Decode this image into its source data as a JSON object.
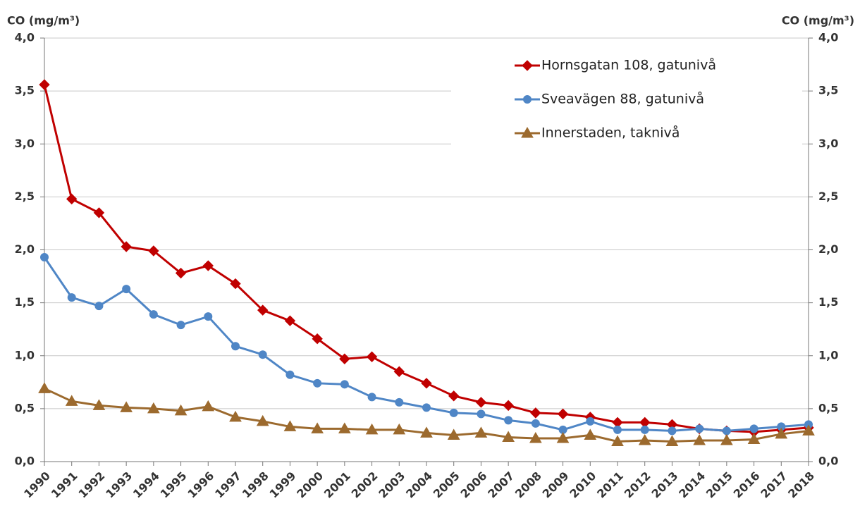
{
  "chart_data": {
    "type": "line",
    "y_label": "CO (mg/m³)",
    "y2_label": "CO (mg/m³)",
    "categories": [
      "1990",
      "1991",
      "1992",
      "1993",
      "1994",
      "1995",
      "1996",
      "1997",
      "1998",
      "1999",
      "2000",
      "2001",
      "2002",
      "2003",
      "2004",
      "2005",
      "2006",
      "2007",
      "2008",
      "2009",
      "2010",
      "2011",
      "2012",
      "2013",
      "2014",
      "2015",
      "2016",
      "2017",
      "2018"
    ],
    "series": [
      {
        "name": "Hornsgatan 108, gatunivå",
        "color": "#c00000",
        "marker": "diamond",
        "values": [
          3.56,
          2.48,
          2.35,
          2.03,
          1.99,
          1.78,
          1.85,
          1.68,
          1.43,
          1.33,
          1.16,
          0.97,
          0.99,
          0.85,
          0.74,
          0.62,
          0.56,
          0.53,
          0.46,
          0.45,
          0.42,
          0.37,
          0.37,
          0.35,
          0.31,
          0.29,
          0.28,
          0.3,
          0.32
        ]
      },
      {
        "name": "Sveavägen 88, gatunivå",
        "color": "#4f86c6",
        "marker": "circle",
        "values": [
          1.93,
          1.55,
          1.47,
          1.63,
          1.39,
          1.29,
          1.37,
          1.09,
          1.01,
          0.82,
          0.74,
          0.73,
          0.61,
          0.56,
          0.51,
          0.46,
          0.45,
          0.39,
          0.36,
          0.3,
          0.38,
          0.3,
          0.3,
          0.29,
          0.31,
          0.29,
          0.31,
          0.33,
          0.35
        ]
      },
      {
        "name": "Innerstaden, taknivå",
        "color": "#9c6a2e",
        "marker": "triangle",
        "values": [
          0.69,
          0.57,
          0.53,
          0.51,
          0.5,
          0.48,
          0.52,
          0.42,
          0.38,
          0.33,
          0.31,
          0.31,
          0.3,
          0.3,
          0.27,
          0.25,
          0.27,
          0.23,
          0.22,
          0.22,
          0.25,
          0.19,
          0.2,
          0.19,
          0.2,
          0.2,
          0.21,
          0.26,
          0.29
        ]
      }
    ],
    "ylim": [
      0,
      4
    ],
    "yticks": [
      {
        "value": 0,
        "label": "0,0"
      },
      {
        "value": 0.5,
        "label": "0,5"
      },
      {
        "value": 1,
        "label": "1,0"
      },
      {
        "value": 1.5,
        "label": "1,5"
      },
      {
        "value": 2,
        "label": "2,0"
      },
      {
        "value": 2.5,
        "label": "2,5"
      },
      {
        "value": 3,
        "label": "3,0"
      },
      {
        "value": 3.5,
        "label": "3,5"
      },
      {
        "value": 4,
        "label": "4,0"
      }
    ],
    "y2lim": [
      0,
      4
    ],
    "y2ticks": [
      {
        "value": 0,
        "label": "0,0"
      },
      {
        "value": 0.5,
        "label": "0,5"
      },
      {
        "value": 1,
        "label": "1,0"
      },
      {
        "value": 1.5,
        "label": "1,5"
      },
      {
        "value": 2,
        "label": "2,0"
      },
      {
        "value": 2.5,
        "label": "2,5"
      },
      {
        "value": 3,
        "label": "3,0"
      },
      {
        "value": 3.5,
        "label": "3,5"
      },
      {
        "value": 4,
        "label": "4,0"
      }
    ],
    "grid": true,
    "legend": "top-right"
  }
}
